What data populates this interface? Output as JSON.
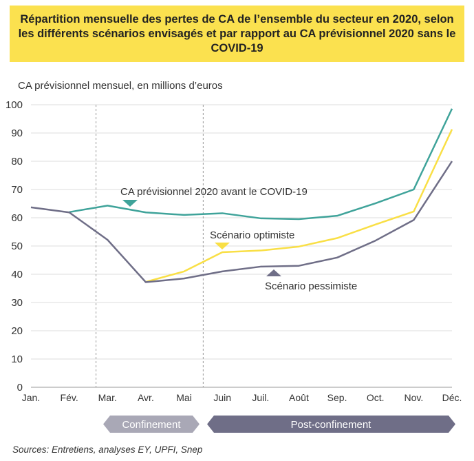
{
  "title": "Répartition mensuelle des pertes de CA de l’ensemble du secteur en 2020, selon les différents scénarios envisagés et par rapport au CA prévisionnel 2020 sans le COVID-19",
  "source": "Sources: Entretiens, analyses EY, UPFI, Snep",
  "chart_data": {
    "type": "line",
    "title": "Répartition mensuelle des pertes de CA de l’ensemble du secteur en 2020, selon les différents scénarios envisagés et par rapport au CA prévisionnel 2020 sans le COVID-19",
    "ylabel": "CA prévisionnel mensuel, en millions d’euros",
    "ylim": [
      0,
      100
    ],
    "yticks": [
      0,
      10,
      20,
      30,
      40,
      50,
      60,
      70,
      80,
      90,
      100
    ],
    "grid": true,
    "categories": [
      "Jan.",
      "Fév.",
      "Mar.",
      "Avr.",
      "Mai",
      "Juin",
      "Juil.",
      "Août",
      "Sep.",
      "Oct.",
      "Nov.",
      "Déc."
    ],
    "series": [
      {
        "name": "CA prévisionnel 2020 avant le COVID-19",
        "color": "#3fa39a",
        "values": [
          null,
          62,
          64.3,
          61.9,
          61,
          61.6,
          59.8,
          59.5,
          60.7,
          65.1,
          70,
          98.6
        ]
      },
      {
        "name": "Scénario optimiste",
        "color": "#f9df45",
        "values": [
          null,
          null,
          null,
          37.3,
          41,
          47.8,
          48.4,
          49.8,
          52.8,
          57.6,
          62.2,
          91.3
        ]
      },
      {
        "name": "Scénario pessimiste",
        "color": "#6f6e87",
        "values": [
          63.7,
          61.9,
          52.2,
          37.2,
          38.5,
          41,
          42.7,
          43,
          45.9,
          51.9,
          59.2,
          80
        ]
      }
    ],
    "period_markers": [
      "Fév.-Mar.",
      "Mai-Juin"
    ],
    "periods": [
      {
        "label": "Confinement",
        "color": "#a9a8b6"
      },
      {
        "label": "Post-confinement",
        "color": "#6f6e87"
      }
    ]
  }
}
